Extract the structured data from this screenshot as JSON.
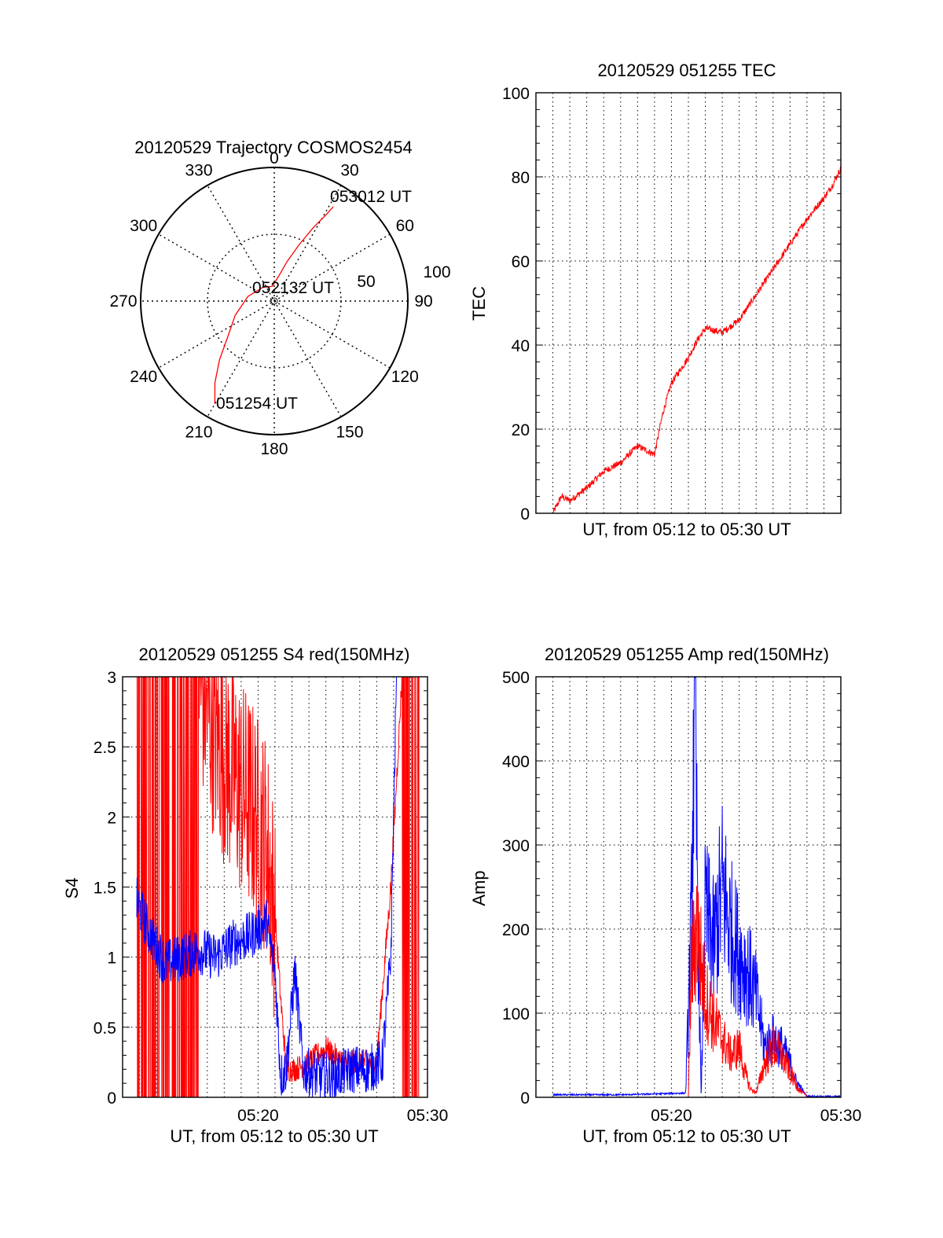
{
  "chart_data": [
    {
      "id": "trajectory",
      "type": "polar",
      "title": "20120529 Trajectory COSMOS2454",
      "angle_labels": [
        "0",
        "30",
        "60",
        "90",
        "120",
        "150",
        "180",
        "210",
        "240",
        "270",
        "300",
        "330"
      ],
      "radial_labels": [
        "50",
        "100"
      ],
      "series": [
        {
          "color": "#ff0000",
          "azimuth_elevation": [
            [
              210,
              10
            ],
            [
              216,
              22
            ],
            [
              223,
              36
            ],
            [
              232,
              50
            ],
            [
              250,
              62
            ],
            [
              280,
              72
            ],
            [
              320,
              78
            ],
            [
              352,
              80
            ],
            [
              10,
              73
            ],
            [
              18,
              62
            ],
            [
              24,
              48
            ],
            [
              28,
              34
            ],
            [
              31,
              22
            ],
            [
              32,
              15
            ]
          ]
        }
      ],
      "annotations": [
        {
          "text": "053012 UT",
          "az": 32,
          "el": 15
        },
        {
          "text": "052132 UT",
          "az": 0,
          "el": 90
        },
        {
          "text": "051254 UT",
          "az": 210,
          "el": 10
        }
      ]
    },
    {
      "id": "tec",
      "type": "line",
      "title": "20120529 051255 TEC",
      "xlabel": "UT, from 05:12 to 05:30 UT",
      "ylabel": "TEC",
      "xlim": [
        "05:12",
        "05:30"
      ],
      "ylim": [
        0,
        100
      ],
      "yticks": [
        "0",
        "20",
        "40",
        "60",
        "80",
        "100"
      ],
      "xticks": [],
      "grid": true,
      "series": [
        {
          "color": "#ff0000",
          "x": [
            "05:13",
            "05:13:30",
            "05:14",
            "05:15",
            "05:16",
            "05:17",
            "05:17:30",
            "05:18",
            "05:19",
            "05:19:30",
            "05:20",
            "05:21",
            "05:21:30",
            "05:22",
            "05:23",
            "05:24",
            "05:25",
            "05:26",
            "05:27",
            "05:28",
            "05:29",
            "05:29:30",
            "05:30"
          ],
          "y": [
            0,
            4,
            3,
            6,
            10,
            12,
            14,
            16,
            14,
            24,
            31,
            37,
            41,
            44,
            43,
            46,
            52,
            58,
            64,
            70,
            75,
            78,
            82
          ]
        }
      ]
    },
    {
      "id": "s4",
      "type": "line",
      "title": "20120529 051255 S4 red(150MHz)",
      "xlabel": "UT, from 05:12 to 05:30 UT",
      "ylabel": "S4",
      "xlim": [
        "05:12",
        "05:30"
      ],
      "ylim": [
        0,
        3
      ],
      "yticks": [
        "0",
        "0.5",
        "1",
        "1.5",
        "2",
        "2.5",
        "3"
      ],
      "xticks": [
        "05:20",
        "05:30"
      ],
      "grid": true,
      "series": [
        {
          "color": "#ff0000",
          "x": [
            "05:12:50",
            "05:13:30",
            "05:14:30",
            "05:15:30",
            "05:16:30",
            "05:17:30",
            "05:18:30",
            "05:19:30",
            "05:20:30",
            "05:21:00",
            "05:21:20",
            "05:21:40",
            "05:22:10",
            "05:23:00",
            "05:24:00",
            "05:25:00",
            "05:26:00",
            "05:27:00",
            "05:27:50",
            "05:28:30",
            "05:29:30"
          ],
          "y": [
            3,
            3,
            3,
            3,
            3,
            2.6,
            2.3,
            2.1,
            1.8,
            1.3,
            0.7,
            0.2,
            0.2,
            0.25,
            0.35,
            0.25,
            0.25,
            0.25,
            1.5,
            3,
            3
          ]
        },
        {
          "color": "#0000ff",
          "x": [
            "05:12:50",
            "05:13:30",
            "05:14:30",
            "05:15:30",
            "05:16:30",
            "05:17:30",
            "05:18:30",
            "05:19:30",
            "05:20:30",
            "05:21:00",
            "05:21:20",
            "05:21:40",
            "05:22:10",
            "05:22:40",
            "05:23:30",
            "05:24:30",
            "05:25:30",
            "05:26:30",
            "05:27:20",
            "05:27:50",
            "05:28:10"
          ],
          "y": [
            1.4,
            1.2,
            0.95,
            1.0,
            1.05,
            1.0,
            1.1,
            1.15,
            1.25,
            0.9,
            0.15,
            0.2,
            0.9,
            0.2,
            0.15,
            0.15,
            0.2,
            0.2,
            0.25,
            1.0,
            3
          ]
        }
      ]
    },
    {
      "id": "amp",
      "type": "line",
      "title": "20120529 051255 Amp red(150MHz)",
      "xlabel": "UT, from 05:12 to 05:30 UT",
      "ylabel": "Amp",
      "xlim": [
        "05:12",
        "05:30"
      ],
      "ylim": [
        0,
        500
      ],
      "yticks": [
        "0",
        "100",
        "200",
        "300",
        "400",
        "500"
      ],
      "xticks": [
        "05:20",
        "05:30"
      ],
      "grid": true,
      "series": [
        {
          "color": "#0000ff",
          "x": [
            "05:13",
            "05:15",
            "05:17",
            "05:19",
            "05:20:50",
            "05:21:10",
            "05:21:20",
            "05:21:30",
            "05:21:45",
            "05:22:00",
            "05:22:30",
            "05:23:00",
            "05:23:30",
            "05:24:00",
            "05:24:30",
            "05:25:00",
            "05:25:30",
            "05:26:00",
            "05:26:30",
            "05:27:00",
            "05:27:20",
            "05:28",
            "05:30"
          ],
          "y": [
            2,
            2,
            2,
            3,
            4,
            200,
            470,
            300,
            0,
            220,
            180,
            250,
            200,
            170,
            150,
            120,
            60,
            70,
            60,
            40,
            20,
            0,
            0
          ]
        },
        {
          "color": "#ff0000",
          "x": [
            "05:21:00",
            "05:21:10",
            "05:21:30",
            "05:22:00",
            "05:22:30",
            "05:23:00",
            "05:23:30",
            "05:24:00",
            "05:24:20",
            "05:24:40",
            "05:25:00",
            "05:25:30",
            "05:26:00",
            "05:26:30",
            "05:27:00",
            "05:27:30",
            "05:28"
          ],
          "y": [
            0,
            150,
            200,
            120,
            90,
            70,
            50,
            60,
            30,
            10,
            5,
            40,
            60,
            50,
            30,
            10,
            0
          ]
        }
      ]
    }
  ]
}
